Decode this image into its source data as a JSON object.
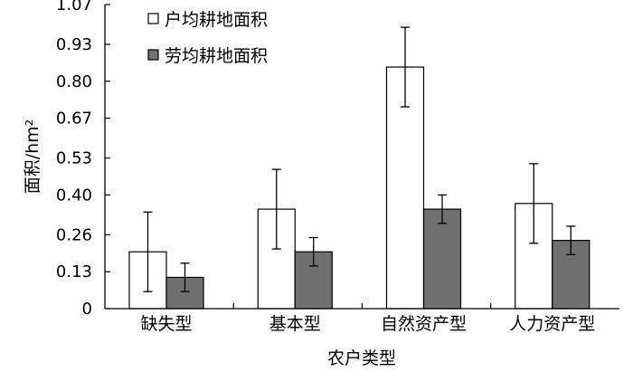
{
  "chart_data": {
    "type": "bar",
    "title": "",
    "xlabel": "农户类型",
    "ylabel": "面积/hm²",
    "categories": [
      "缺失型",
      "基本型",
      "自然资产型",
      "人力资产型"
    ],
    "y_ticks": [
      "0",
      "0.13",
      "0.26",
      "0.40",
      "0.53",
      "0.67",
      "0.80",
      "0.93",
      "1.07"
    ],
    "ylim": [
      0,
      1.07
    ],
    "grid": false,
    "legend_position": "top-left",
    "series": [
      {
        "name": "户均耕地面积",
        "color": "#ffffff",
        "values": [
          0.2,
          0.35,
          0.85,
          0.37
        ],
        "error_low": [
          0.06,
          0.21,
          0.71,
          0.23
        ],
        "error_high": [
          0.34,
          0.49,
          0.99,
          0.51
        ]
      },
      {
        "name": "劳均耕地面积",
        "color": "#707070",
        "values": [
          0.11,
          0.2,
          0.35,
          0.24
        ],
        "error_low": [
          0.06,
          0.15,
          0.3,
          0.19
        ],
        "error_high": [
          0.16,
          0.25,
          0.4,
          0.29
        ]
      }
    ]
  }
}
